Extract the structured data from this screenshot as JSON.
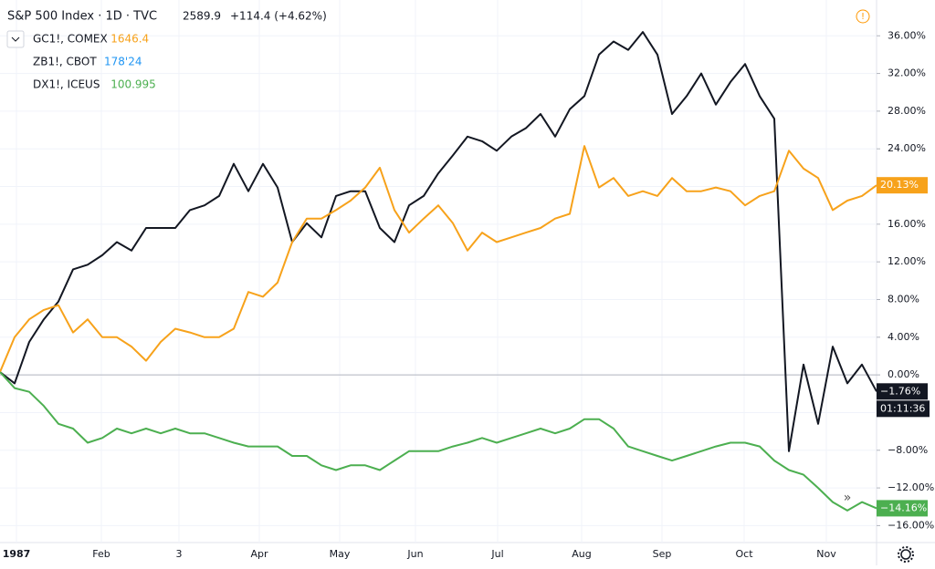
{
  "chart_data": {
    "type": "line",
    "title": "S&P 500 Index · 1D · TVC",
    "price": "2589.9",
    "change": "+114.4 (+4.62%)",
    "countdown": "01:11:36",
    "x": [
      0,
      4,
      8,
      12,
      16,
      20,
      24,
      28,
      32,
      36,
      40,
      44,
      48,
      52,
      56,
      60,
      64,
      68,
      72,
      76,
      80,
      84,
      88,
      92,
      96,
      100,
      104,
      108,
      112,
      116,
      120,
      124,
      128,
      132,
      136,
      140,
      144,
      148,
      152,
      156,
      160,
      164,
      168,
      172,
      176,
      180,
      184,
      188,
      192,
      196,
      200,
      204,
      208,
      212,
      216,
      220,
      224,
      228,
      232,
      236,
      240
    ],
    "xlim": [
      0,
      240
    ],
    "xticks": [
      {
        "value": 4.5,
        "label": "1987"
      },
      {
        "value": 27.75,
        "label": "Feb"
      },
      {
        "value": 49,
        "label": "3"
      },
      {
        "value": 71,
        "label": "Apr"
      },
      {
        "value": 93,
        "label": "May"
      },
      {
        "value": 113.75,
        "label": "Jun"
      },
      {
        "value": 136.25,
        "label": "Jul"
      },
      {
        "value": 159.25,
        "label": "Aug"
      },
      {
        "value": 181.25,
        "label": "Sep"
      },
      {
        "value": 203.75,
        "label": "Oct"
      },
      {
        "value": 226.25,
        "label": "Nov"
      }
    ],
    "ylim": [
      -17.8,
      39.8
    ],
    "yticks": [
      {
        "value": -16,
        "label": "−16.00%"
      },
      {
        "value": -12,
        "label": "−12.00%"
      },
      {
        "value": -8,
        "label": "−8.00%"
      },
      {
        "value": -4,
        "label": "−4.00%"
      },
      {
        "value": 0,
        "label": "0.00%"
      },
      {
        "value": 4,
        "label": "4.00%"
      },
      {
        "value": 8,
        "label": "8.00%"
      },
      {
        "value": 12,
        "label": "12.00%"
      },
      {
        "value": 16,
        "label": "16.00%"
      },
      {
        "value": 20,
        "label": "20.00%"
      },
      {
        "value": 24,
        "label": "24.00%"
      },
      {
        "value": 28,
        "label": "28.00%"
      },
      {
        "value": 32,
        "label": "32.00%"
      },
      {
        "value": 36,
        "label": "36.00%"
      }
    ],
    "grid": true,
    "series": [
      {
        "name": "S&P 500 Index",
        "color": "#131722",
        "last_label": "−1.76%",
        "values": [
          0.3,
          -0.9,
          3.5,
          5.9,
          7.8,
          11.2,
          11.7,
          12.7,
          14.1,
          13.2,
          15.6,
          15.6,
          15.6,
          17.5,
          18.0,
          19.0,
          22.4,
          19.5,
          22.4,
          19.9,
          14.1,
          16.1,
          14.6,
          19.0,
          19.5,
          19.5,
          15.6,
          14.1,
          18.0,
          19.0,
          21.4,
          23.3,
          25.3,
          24.8,
          23.8,
          25.3,
          26.2,
          27.7,
          25.3,
          28.2,
          29.6,
          34.0,
          35.4,
          34.5,
          36.4,
          34.0,
          27.7,
          29.6,
          32.0,
          28.7,
          31.1,
          33.0,
          29.6,
          27.2,
          -8.1,
          1.1,
          -5.2,
          3.0,
          -0.9,
          1.1,
          -1.76
        ]
      },
      {
        "name": "GC1!, COMEX",
        "color": "#f7a21b",
        "price": "1646.4",
        "last_label": "20.13%",
        "values": [
          0.3,
          4.0,
          5.9,
          6.9,
          7.4,
          4.5,
          5.9,
          4.0,
          4.0,
          3.0,
          1.5,
          3.5,
          4.9,
          4.5,
          4.0,
          4.0,
          4.9,
          8.8,
          8.3,
          9.8,
          14.1,
          16.6,
          16.6,
          17.5,
          18.5,
          19.9,
          22.0,
          17.5,
          15.1,
          16.6,
          18.0,
          16.1,
          13.2,
          15.1,
          14.1,
          14.6,
          15.1,
          15.6,
          16.6,
          17.1,
          24.3,
          19.9,
          20.9,
          19.0,
          19.5,
          19.0,
          20.9,
          19.5,
          19.5,
          19.9,
          19.5,
          18.0,
          19.0,
          19.5,
          23.8,
          21.9,
          20.9,
          17.5,
          18.5,
          19.0,
          20.13
        ]
      },
      {
        "name": "DX1!, ICEUS",
        "color": "#4caf50",
        "price": "100.995",
        "last_label": "−14.16%",
        "values": [
          0.3,
          -1.4,
          -1.8,
          -3.3,
          -5.2,
          -5.7,
          -7.2,
          -6.7,
          -5.7,
          -6.2,
          -5.7,
          -6.2,
          -5.7,
          -6.2,
          -6.2,
          -6.7,
          -7.2,
          -7.6,
          -7.6,
          -7.6,
          -8.6,
          -8.6,
          -9.6,
          -10.1,
          -9.6,
          -9.6,
          -10.1,
          -9.1,
          -8.1,
          -8.1,
          -8.1,
          -7.6,
          -7.2,
          -6.7,
          -7.2,
          -6.7,
          -6.2,
          -5.7,
          -6.2,
          -5.7,
          -4.7,
          -4.7,
          -5.7,
          -7.6,
          -8.1,
          -8.6,
          -9.1,
          -8.6,
          -8.1,
          -7.6,
          -7.2,
          -7.2,
          -7.6,
          -9.1,
          -10.1,
          -10.6,
          -12.0,
          -13.5,
          -14.4,
          -13.5,
          -14.16
        ]
      }
    ],
    "legend_only": [
      {
        "name": "ZB1!, CBOT",
        "price": "178'24",
        "color": "#2196f3"
      }
    ]
  }
}
